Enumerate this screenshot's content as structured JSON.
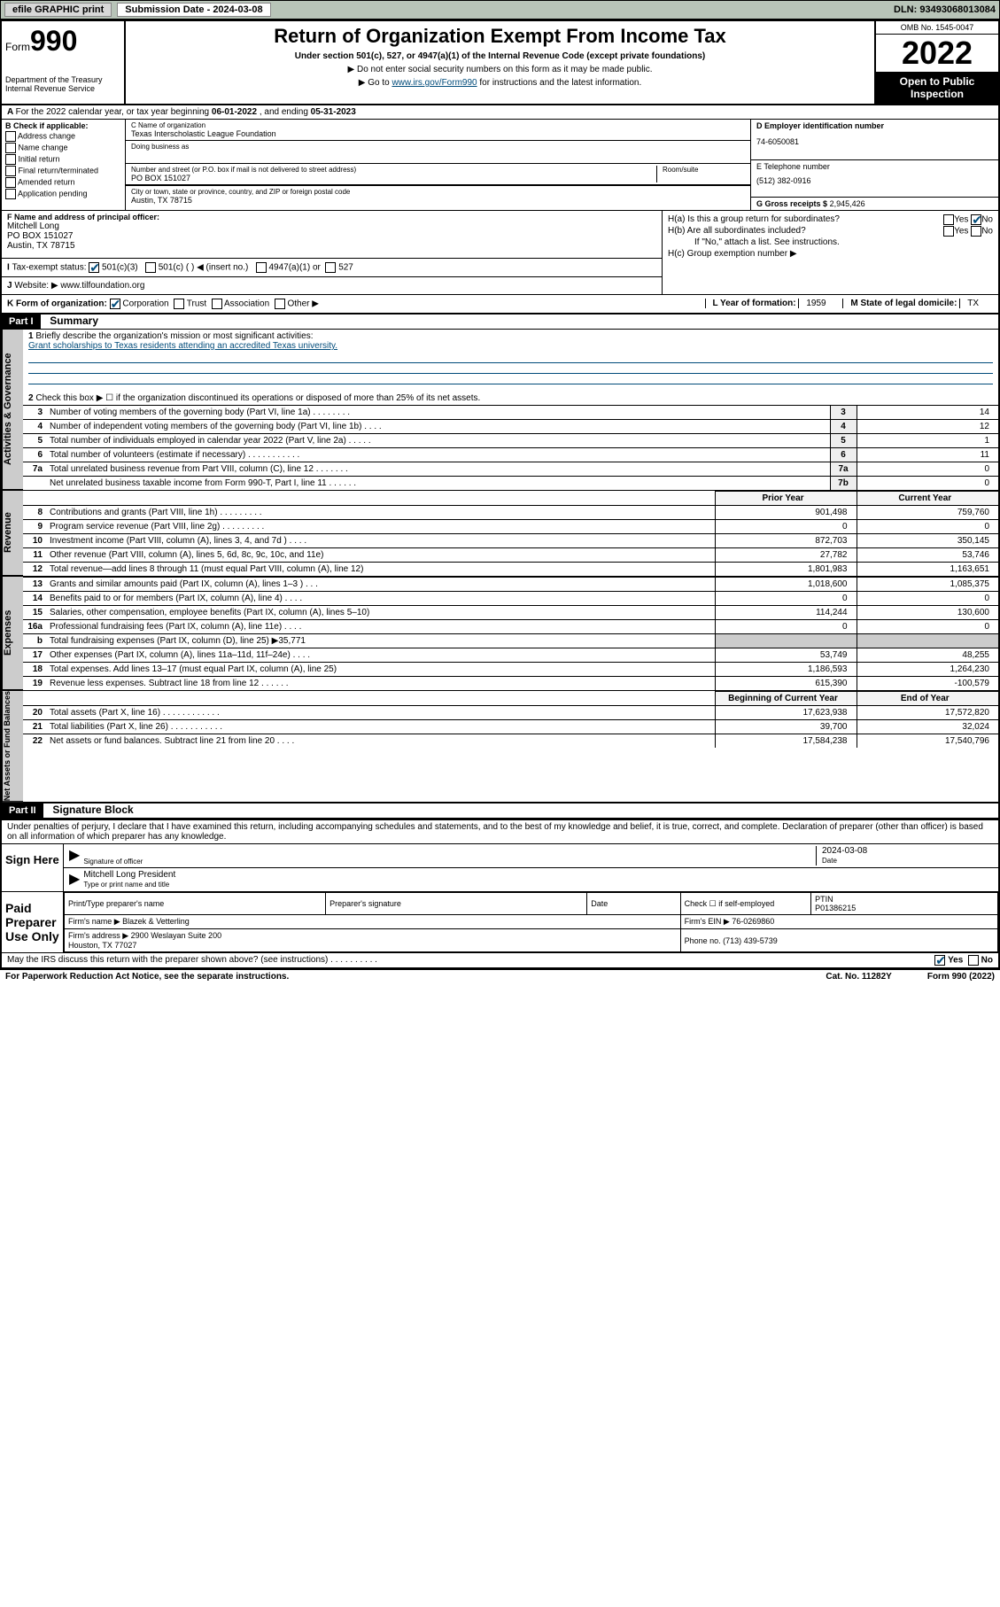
{
  "top": {
    "efile": "efile GRAPHIC print",
    "submission_label": "Submission Date - 2024-03-08",
    "dln": "DLN: 93493068013084"
  },
  "header": {
    "form_label": "Form",
    "form_num": "990",
    "dept": "Department of the Treasury\nInternal Revenue Service",
    "title": "Return of Organization Exempt From Income Tax",
    "sub1": "Under section 501(c), 527, or 4947(a)(1) of the Internal Revenue Code (except private foundations)",
    "sub2a": "▶ Do not enter social security numbers on this form as it may be made public.",
    "sub2b_pre": "▶ Go to ",
    "sub2b_link": "www.irs.gov/Form990",
    "sub2b_post": " for instructions and the latest information.",
    "omb": "OMB No. 1545-0047",
    "year": "2022",
    "otp": "Open to Public Inspection"
  },
  "a": {
    "text_pre": "For the 2022 calendar year, or tax year beginning ",
    "begin": "06-01-2022",
    "mid": " , and ending ",
    "end": "05-31-2023"
  },
  "b": {
    "label": "B Check if applicable:",
    "opts": [
      "Address change",
      "Name change",
      "Initial return",
      "Final return/terminated",
      "Amended return",
      "Application pending"
    ]
  },
  "c": {
    "label": "C Name of organization",
    "name": "Texas Interscholastic League Foundation",
    "dba_label": "Doing business as",
    "street_label": "Number and street (or P.O. box if mail is not delivered to street address)",
    "room_label": "Room/suite",
    "street": "PO BOX 151027",
    "city_label": "City or town, state or province, country, and ZIP or foreign postal code",
    "city": "Austin, TX  78715"
  },
  "d": {
    "label": "D Employer identification number",
    "val": "74-6050081"
  },
  "e": {
    "label": "E Telephone number",
    "val": "(512) 382-0916"
  },
  "g": {
    "label": "G Gross receipts $",
    "val": "2,945,426"
  },
  "f": {
    "label": "F Name and address of principal officer:",
    "name": "Mitchell Long",
    "addr1": "PO BOX 151027",
    "addr2": "Austin, TX  78715"
  },
  "h": {
    "a_label": "H(a)  Is this a group return for subordinates?",
    "a_yes": "Yes",
    "a_no": "No",
    "b_label": "H(b)  Are all subordinates included?",
    "b_note": "If \"No,\" attach a list. See instructions.",
    "c_label": "H(c)  Group exemption number ▶"
  },
  "i": {
    "label": "Tax-exempt status:",
    "opt1": "501(c)(3)",
    "opt2": "501(c) (  ) ◀ (insert no.)",
    "opt3": "4947(a)(1) or",
    "opt4": "527"
  },
  "j": {
    "label": "Website: ▶",
    "val": "www.tilfoundation.org"
  },
  "k": {
    "label": "K Form of organization:",
    "opts": [
      "Corporation",
      "Trust",
      "Association",
      "Other ▶"
    ],
    "l_label": "L Year of formation:",
    "l_val": "1959",
    "m_label": "M State of legal domicile:",
    "m_val": "TX"
  },
  "part1": {
    "hdr": "Part I",
    "title": "Summary",
    "q1_label": "Briefly describe the organization's mission or most significant activities:",
    "q1_val": "Grant scholarships to Texas residents attending an accredited Texas university.",
    "q2": "Check this box ▶ ☐  if the organization discontinued its operations or disposed of more than 25% of its net assets.",
    "lines_top": [
      {
        "n": "3",
        "d": "Number of voting members of the governing body (Part VI, line 1a)  .   .   .   .   .   .   .   .",
        "box": "3",
        "v": "14"
      },
      {
        "n": "4",
        "d": "Number of independent voting members of the governing body (Part VI, line 1b)  .   .   .   .",
        "box": "4",
        "v": "12"
      },
      {
        "n": "5",
        "d": "Total number of individuals employed in calendar year 2022 (Part V, line 2a)  .   .   .   .   .",
        "box": "5",
        "v": "1"
      },
      {
        "n": "6",
        "d": "Total number of volunteers (estimate if necessary)  .   .   .   .   .   .   .   .   .   .   .",
        "box": "6",
        "v": "11"
      },
      {
        "n": "7a",
        "d": "Total unrelated business revenue from Part VIII, column (C), line 12  .   .   .   .   .   .   .",
        "box": "7a",
        "v": "0"
      },
      {
        "n": "",
        "d": "Net unrelated business taxable income from Form 990-T, Part I, line 11  .   .   .   .   .   .",
        "box": "7b",
        "v": "0"
      }
    ],
    "col_hdrs": [
      "Prior Year",
      "Current Year"
    ],
    "revenue": [
      {
        "n": "8",
        "d": "Contributions and grants (Part VIII, line 1h)  .   .   .   .   .   .   .   .   .",
        "p": "901,498",
        "c": "759,760"
      },
      {
        "n": "9",
        "d": "Program service revenue (Part VIII, line 2g)  .   .   .   .   .   .   .   .   .",
        "p": "0",
        "c": "0"
      },
      {
        "n": "10",
        "d": "Investment income (Part VIII, column (A), lines 3, 4, and 7d )  .   .   .   .",
        "p": "872,703",
        "c": "350,145"
      },
      {
        "n": "11",
        "d": "Other revenue (Part VIII, column (A), lines 5, 6d, 8c, 9c, 10c, and 11e)",
        "p": "27,782",
        "c": "53,746"
      },
      {
        "n": "12",
        "d": "Total revenue—add lines 8 through 11 (must equal Part VIII, column (A), line 12)",
        "p": "1,801,983",
        "c": "1,163,651"
      }
    ],
    "expenses": [
      {
        "n": "13",
        "d": "Grants and similar amounts paid (Part IX, column (A), lines 1–3 )  .   .   .",
        "p": "1,018,600",
        "c": "1,085,375"
      },
      {
        "n": "14",
        "d": "Benefits paid to or for members (Part IX, column (A), line 4)  .   .   .   .",
        "p": "0",
        "c": "0"
      },
      {
        "n": "15",
        "d": "Salaries, other compensation, employee benefits (Part IX, column (A), lines 5–10)",
        "p": "114,244",
        "c": "130,600"
      },
      {
        "n": "16a",
        "d": "Professional fundraising fees (Part IX, column (A), line 11e)  .   .   .   .",
        "p": "0",
        "c": "0"
      },
      {
        "n": "b",
        "d": "Total fundraising expenses (Part IX, column (D), line 25) ▶35,771",
        "p": "",
        "c": ""
      },
      {
        "n": "17",
        "d": "Other expenses (Part IX, column (A), lines 11a–11d, 11f–24e)  .   .   .   .",
        "p": "53,749",
        "c": "48,255"
      },
      {
        "n": "18",
        "d": "Total expenses. Add lines 13–17 (must equal Part IX, column (A), line 25)",
        "p": "1,186,593",
        "c": "1,264,230"
      },
      {
        "n": "19",
        "d": "Revenue less expenses. Subtract line 18 from line 12  .   .   .   .   .   .",
        "p": "615,390",
        "c": "-100,579"
      }
    ],
    "net_hdrs": [
      "Beginning of Current Year",
      "End of Year"
    ],
    "net": [
      {
        "n": "20",
        "d": "Total assets (Part X, line 16)  .   .   .   .   .   .   .   .   .   .   .   .",
        "p": "17,623,938",
        "c": "17,572,820"
      },
      {
        "n": "21",
        "d": "Total liabilities (Part X, line 26)  .   .   .   .   .   .   .   .   .   .   .",
        "p": "39,700",
        "c": "32,024"
      },
      {
        "n": "22",
        "d": "Net assets or fund balances. Subtract line 21 from line 20  .   .   .   .",
        "p": "17,584,238",
        "c": "17,540,796"
      }
    ],
    "side_labels": {
      "gov": "Activities & Governance",
      "rev": "Revenue",
      "exp": "Expenses",
      "net": "Net Assets or Fund Balances"
    }
  },
  "part2": {
    "hdr": "Part II",
    "title": "Signature Block",
    "decl": "Under penalties of perjury, I declare that I have examined this return, including accompanying schedules and statements, and to the best of my knowledge and belief, it is true, correct, and complete. Declaration of preparer (other than officer) is based on all information of which preparer has any knowledge.",
    "sign_here": "Sign Here",
    "sig_officer": "Signature of officer",
    "sig_date": "2024-03-08",
    "date_lbl": "Date",
    "name_title": "Mitchell Long President",
    "name_title_lbl": "Type or print name and title",
    "paid": "Paid Preparer Use Only",
    "prep_hdrs": [
      "Print/Type preparer's name",
      "Preparer's signature",
      "Date"
    ],
    "prep_check": "Check ☐ if self-employed",
    "ptin_lbl": "PTIN",
    "ptin": "P01386215",
    "firm_name_lbl": "Firm's name   ▶",
    "firm_name": "Blazek & Vetterling",
    "firm_ein_lbl": "Firm's EIN ▶",
    "firm_ein": "76-0269860",
    "firm_addr_lbl": "Firm's address ▶",
    "firm_addr": "2900 Weslayan Suite 200\nHouston, TX  77027",
    "firm_phone_lbl": "Phone no.",
    "firm_phone": "(713) 439-5739",
    "discuss": "May the IRS discuss this return with the preparer shown above? (see instructions)  .   .   .   .   .   .   .   .   .   .",
    "discuss_yes": "Yes",
    "discuss_no": "No"
  },
  "footer": {
    "pra": "For Paperwork Reduction Act Notice, see the separate instructions.",
    "cat": "Cat. No. 11282Y",
    "form": "Form 990 (2022)"
  }
}
